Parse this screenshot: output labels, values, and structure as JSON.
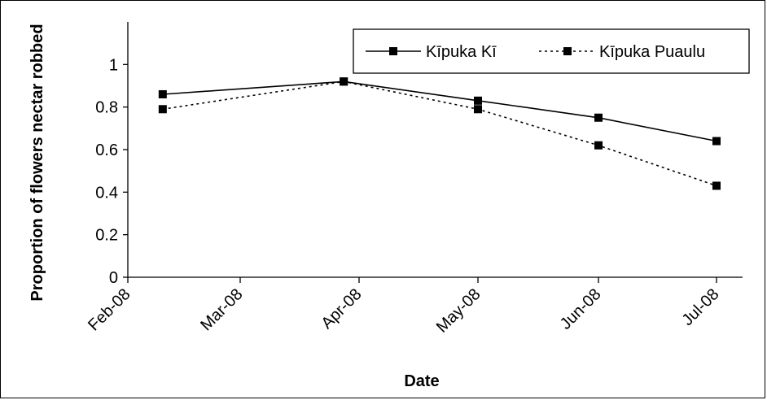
{
  "chart_data": {
    "type": "line",
    "title": "",
    "xlabel": "Date",
    "ylabel": "Proportion of flowers nectar robbed",
    "x_tick_labels": [
      "Feb-08",
      "Mar-08",
      "Apr-08",
      "May-08",
      "Jun-08",
      "Jul-08"
    ],
    "ylim": [
      0,
      1.2
    ],
    "y_ticks": [
      0,
      0.2,
      0.4,
      0.6,
      0.8,
      1
    ],
    "y_tick_labels": [
      "0",
      "0.2",
      "0.4",
      "0.6",
      "0.8",
      "1"
    ],
    "grid": false,
    "legend_position": "top-right",
    "series": [
      {
        "name": "Kīpuka Kī",
        "line_style": "solid",
        "marker": "square",
        "color": "#000000",
        "x": [
          "2008-02-10",
          "2008-03-28",
          "2008-05-01",
          "2008-06-01",
          "2008-07-01"
        ],
        "values": [
          0.86,
          0.92,
          0.83,
          0.75,
          0.64
        ]
      },
      {
        "name": "Kīpuka Puaulu",
        "line_style": "dotted",
        "marker": "square",
        "color": "#000000",
        "x": [
          "2008-02-10",
          "2008-03-28",
          "2008-05-01",
          "2008-06-01",
          "2008-07-01"
        ],
        "values": [
          0.79,
          0.92,
          0.79,
          0.62,
          0.43
        ]
      }
    ]
  }
}
